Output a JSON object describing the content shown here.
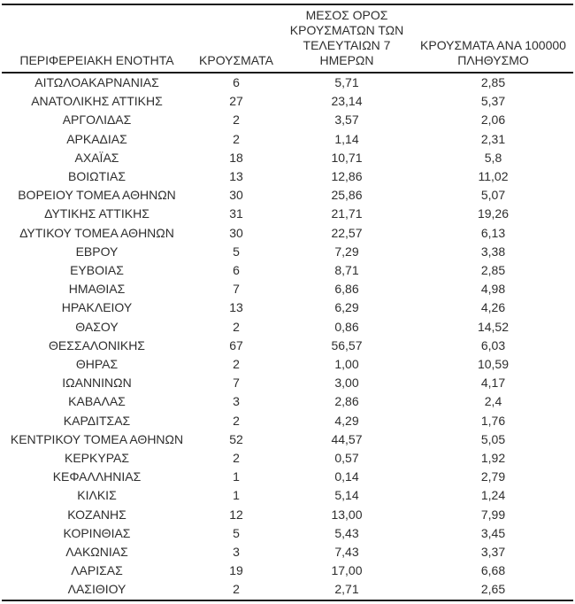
{
  "colors": {
    "background": "#ffffff",
    "text": "#2e2e2e",
    "rule_lines": "#1a1a1a"
  },
  "table": {
    "columns": [
      {
        "id": "region",
        "label": "ΠΕΡΙΦΕΡΕΙΑΚΗ ΕΝΟΤΗΤΑ",
        "lines": [
          "ΠΕΡΙΦΕΡΕΙΑΚΗ ΕΝΟΤΗΤΑ"
        ]
      },
      {
        "id": "cases",
        "label": "ΚΡΟΥΣΜΑΤΑ",
        "lines": [
          "ΚΡΟΥΣΜΑΤΑ"
        ]
      },
      {
        "id": "avg7",
        "label": "ΜΕΣΟΣ ΟΡΟΣ ΚΡΟΥΣΜΑΤΩΝ ΤΩΝ ΤΕΛΕΥΤΑΙΩΝ 7 ΗΜΕΡΩΝ",
        "lines": [
          "ΜΕΣΟΣ ΟΡΟΣ",
          "ΚΡΟΥΣΜΑΤΩΝ ΤΩΝ",
          "ΤΕΛΕΥΤΑΙΩΝ 7",
          "ΗΜΕΡΩΝ"
        ]
      },
      {
        "id": "per100k",
        "label": "ΚΡΟΥΣΜΑΤΑ ΑΝΑ 100000 ΠΛΗΘΥΣΜΟ",
        "lines": [
          "ΚΡΟΥΣΜΑΤΑ ΑΝΑ 100000",
          "ΠΛΗΘΥΣΜΟ"
        ]
      }
    ],
    "rows": [
      {
        "region": "ΑΙΤΩΛΟΑΚΑΡΝΑΝΙΑΣ",
        "cases": "6",
        "avg7": "5,71",
        "per100k": "2,85"
      },
      {
        "region": "ΑΝΑΤΟΛΙΚΗΣ ΑΤΤΙΚΗΣ",
        "cases": "27",
        "avg7": "23,14",
        "per100k": "5,37"
      },
      {
        "region": "ΑΡΓΟΛΙΔΑΣ",
        "cases": "2",
        "avg7": "3,57",
        "per100k": "2,06"
      },
      {
        "region": "ΑΡΚΑΔΙΑΣ",
        "cases": "2",
        "avg7": "1,14",
        "per100k": "2,31"
      },
      {
        "region": "ΑΧΑΪΑΣ",
        "cases": "18",
        "avg7": "10,71",
        "per100k": "5,8"
      },
      {
        "region": "ΒΟΙΩΤΙΑΣ",
        "cases": "13",
        "avg7": "12,86",
        "per100k": "11,02"
      },
      {
        "region": "ΒΟΡΕΙΟΥ ΤΟΜΕΑ ΑΘΗΝΩΝ",
        "cases": "30",
        "avg7": "25,86",
        "per100k": "5,07"
      },
      {
        "region": "ΔΥΤΙΚΗΣ ΑΤΤΙΚΗΣ",
        "cases": "31",
        "avg7": "21,71",
        "per100k": "19,26"
      },
      {
        "region": "ΔΥΤΙΚΟΥ ΤΟΜΕΑ ΑΘΗΝΩΝ",
        "cases": "30",
        "avg7": "22,57",
        "per100k": "6,13"
      },
      {
        "region": "ΕΒΡΟΥ",
        "cases": "5",
        "avg7": "7,29",
        "per100k": "3,38"
      },
      {
        "region": "ΕΥΒΟΙΑΣ",
        "cases": "6",
        "avg7": "8,71",
        "per100k": "2,85"
      },
      {
        "region": "ΗΜΑΘΙΑΣ",
        "cases": "7",
        "avg7": "6,86",
        "per100k": "4,98"
      },
      {
        "region": "ΗΡΑΚΛΕΙΟΥ",
        "cases": "13",
        "avg7": "6,29",
        "per100k": "4,26"
      },
      {
        "region": "ΘΑΣΟΥ",
        "cases": "2",
        "avg7": "0,86",
        "per100k": "14,52"
      },
      {
        "region": "ΘΕΣΣΑΛΟΝΙΚΗΣ",
        "cases": "67",
        "avg7": "56,57",
        "per100k": "6,03"
      },
      {
        "region": "ΘΗΡΑΣ",
        "cases": "2",
        "avg7": "1,00",
        "per100k": "10,59"
      },
      {
        "region": "ΙΩΑΝΝΙΝΩΝ",
        "cases": "7",
        "avg7": "3,00",
        "per100k": "4,17"
      },
      {
        "region": "ΚΑΒΑΛΑΣ",
        "cases": "3",
        "avg7": "2,86",
        "per100k": "2,4"
      },
      {
        "region": "ΚΑΡΔΙΤΣΑΣ",
        "cases": "2",
        "avg7": "4,29",
        "per100k": "1,76"
      },
      {
        "region": "ΚΕΝΤΡΙΚΟΥ ΤΟΜΕΑ ΑΘΗΝΩΝ",
        "cases": "52",
        "avg7": "44,57",
        "per100k": "5,05"
      },
      {
        "region": "ΚΕΡΚΥΡΑΣ",
        "cases": "2",
        "avg7": "0,57",
        "per100k": "1,92"
      },
      {
        "region": "ΚΕΦΑΛΛΗΝΙΑΣ",
        "cases": "1",
        "avg7": "0,14",
        "per100k": "2,79"
      },
      {
        "region": "ΚΙΛΚΙΣ",
        "cases": "1",
        "avg7": "5,14",
        "per100k": "1,24"
      },
      {
        "region": "ΚΟΖΑΝΗΣ",
        "cases": "12",
        "avg7": "13,00",
        "per100k": "7,99"
      },
      {
        "region": "ΚΟΡΙΝΘΙΑΣ",
        "cases": "5",
        "avg7": "5,43",
        "per100k": "3,45"
      },
      {
        "region": "ΛΑΚΩΝΙΑΣ",
        "cases": "3",
        "avg7": "7,43",
        "per100k": "3,37"
      },
      {
        "region": "ΛΑΡΙΣΑΣ",
        "cases": "19",
        "avg7": "17,00",
        "per100k": "6,68"
      },
      {
        "region": "ΛΑΣΙΘΙΟΥ",
        "cases": "2",
        "avg7": "2,71",
        "per100k": "2,65"
      }
    ]
  }
}
